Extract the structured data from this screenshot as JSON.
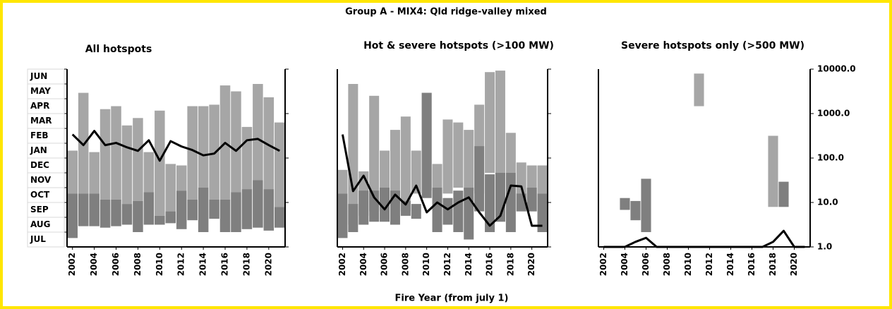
{
  "title": "Group A - MIX4: Qld ridge-valley mixed",
  "xlabel": "Fire Year (from july 1)",
  "chart_data": [
    {
      "type": "bar",
      "title": "All hotspots",
      "x": [
        2002,
        2003,
        2004,
        2005,
        2006,
        2007,
        2008,
        2009,
        2010,
        2011,
        2012,
        2013,
        2014,
        2015,
        2016,
        2017,
        2018,
        2019,
        2020,
        2021
      ],
      "xlim": [
        2001.5,
        2021.5
      ],
      "xticks": [
        2002,
        2004,
        2006,
        2008,
        2010,
        2012,
        2014,
        2016,
        2018,
        2020
      ],
      "ylim": [
        0,
        12
      ],
      "ycategories": [
        "JUL",
        "AUG",
        "SEP",
        "OCT",
        "NOV",
        "DEC",
        "JAN",
        "FEB",
        "MAR",
        "APR",
        "MAY",
        "JUN"
      ],
      "y2lim": [
        1,
        10000
      ],
      "y2log": true,
      "y2ticks": [
        1,
        10,
        100,
        1000,
        10000
      ],
      "series": [
        {
          "color": "#a6a6a6",
          "low": [
            3.6,
            3.6,
            3.6,
            3.2,
            3.2,
            2.9,
            3.1,
            3.7,
            2.1,
            2.4,
            3.8,
            3.2,
            4.0,
            3.2,
            3.2,
            3.7,
            3.9,
            4.5,
            3.9,
            2.7
          ],
          "high": [
            6.5,
            10.4,
            6.4,
            9.3,
            9.5,
            8.2,
            8.7,
            6.4,
            9.2,
            5.6,
            5.5,
            9.5,
            9.5,
            9.6,
            10.9,
            10.5,
            8.1,
            11.0,
            10.1,
            8.4
          ]
        },
        {
          "color": "#7f7f7f",
          "low": [
            0.6,
            1.4,
            1.4,
            1.3,
            1.4,
            1.5,
            1.0,
            1.5,
            1.5,
            1.6,
            1.2,
            1.8,
            1.0,
            1.9,
            1.0,
            1.0,
            1.2,
            1.3,
            1.1,
            1.3
          ],
          "high": [
            3.6,
            3.6,
            3.6,
            3.2,
            3.2,
            2.9,
            3.1,
            3.7,
            2.1,
            2.4,
            3.8,
            3.2,
            4.0,
            3.2,
            3.2,
            3.7,
            3.9,
            4.5,
            3.9,
            2.7
          ]
        },
        {
          "color": "#000000",
          "axis": "y2",
          "values": [
            339,
            195,
            407,
            195,
            219,
            174,
            145,
            251,
            87,
            240,
            182,
            151,
            115,
            126,
            219,
            145,
            251,
            269,
            195,
            145
          ]
        }
      ]
    },
    {
      "type": "bar",
      "title": "Hot & severe hotspots (>100 MW)",
      "x": [
        2002,
        2003,
        2004,
        2005,
        2006,
        2007,
        2008,
        2009,
        2010,
        2011,
        2012,
        2013,
        2014,
        2015,
        2016,
        2017,
        2018,
        2019,
        2020,
        2021
      ],
      "xlim": [
        2001.5,
        2021.5
      ],
      "xticks": [
        2002,
        2004,
        2006,
        2008,
        2010,
        2012,
        2014,
        2016,
        2018,
        2020
      ],
      "ylim": [
        0,
        12
      ],
      "y2lim": [
        1,
        10000
      ],
      "y2log": true,
      "y2ticks": [
        1,
        10,
        100,
        1000,
        10000
      ],
      "series": [
        {
          "color": "#a6a6a6",
          "low": [
            3.6,
            1.5,
            2.1,
            2.4,
            2.9,
            2.9,
            2.4,
            3.6,
            3.8,
            2.9,
            3.6,
            4.0,
            3.8,
            3.6,
            5.0,
            4.8,
            5.0,
            2.4,
            2.4,
            3.6
          ],
          "high": [
            5.2,
            11.0,
            5.1,
            10.2,
            6.5,
            7.9,
            8.8,
            6.5,
            10.4,
            5.6,
            8.6,
            8.4,
            7.9,
            9.6,
            11.8,
            11.9,
            7.7,
            5.7,
            5.5,
            5.5
          ]
        },
        {
          "color": "#7f7f7f",
          "low": [
            0.6,
            1.0,
            1.5,
            1.7,
            1.7,
            1.5,
            2.1,
            1.9,
            3.3,
            1.0,
            1.5,
            1.0,
            0.5,
            2.4,
            1.0,
            1.7,
            1.0,
            2.4,
            2.4,
            1.0
          ],
          "high": [
            3.6,
            2.9,
            3.8,
            3.8,
            4.0,
            3.8,
            3.1,
            2.9,
            10.4,
            4.0,
            3.3,
            3.8,
            4.0,
            6.8,
            4.9,
            5.0,
            5.0,
            3.6,
            4.0,
            3.6
          ]
        },
        {
          "color": "#000000",
          "axis": "y2",
          "values": [
            339,
            18,
            40,
            13,
            7,
            15,
            9,
            24,
            6,
            10,
            7,
            10,
            13,
            6,
            3,
            5,
            24,
            23,
            3,
            3
          ]
        }
      ]
    },
    {
      "type": "bar",
      "title": "Severe hotspots only (>500 MW)",
      "x": [
        2002,
        2003,
        2004,
        2005,
        2006,
        2007,
        2008,
        2009,
        2010,
        2011,
        2012,
        2013,
        2014,
        2015,
        2016,
        2017,
        2018,
        2019,
        2020,
        2021
      ],
      "xlim": [
        2001.5,
        2021.5
      ],
      "xticks": [
        2002,
        2004,
        2006,
        2008,
        2010,
        2012,
        2014,
        2016,
        2018,
        2020
      ],
      "ylim": [
        0,
        12
      ],
      "y2lim": [
        1,
        10000
      ],
      "y2log": true,
      "y2ticks": [
        {
          "value": 1,
          "label": "1.0"
        },
        {
          "value": 10,
          "label": "10.0"
        },
        {
          "value": 100,
          "label": "100.0"
        },
        {
          "value": 1000,
          "label": "1000.0"
        },
        {
          "value": 10000,
          "label": "10000.0"
        }
      ],
      "series": [
        {
          "color": "#a6a6a6",
          "low": [
            null,
            null,
            null,
            null,
            null,
            null,
            null,
            null,
            null,
            9.5,
            null,
            null,
            null,
            null,
            null,
            null,
            2.7,
            null,
            null,
            null
          ],
          "high": [
            null,
            null,
            null,
            null,
            null,
            null,
            null,
            null,
            null,
            11.7,
            null,
            null,
            null,
            null,
            null,
            null,
            7.5,
            null,
            null,
            null
          ]
        },
        {
          "color": "#7f7f7f",
          "low": [
            null,
            null,
            2.5,
            1.8,
            1.0,
            null,
            null,
            null,
            null,
            null,
            null,
            null,
            null,
            null,
            null,
            null,
            null,
            2.7,
            null,
            null
          ],
          "high": [
            null,
            null,
            3.3,
            3.1,
            4.6,
            null,
            null,
            null,
            null,
            null,
            null,
            null,
            null,
            null,
            null,
            null,
            null,
            4.4,
            null,
            null
          ]
        },
        {
          "color": "#000000",
          "axis": "y2",
          "values": [
            1,
            1,
            1,
            1.3,
            1.6,
            1,
            1,
            1,
            1,
            1,
            1,
            1,
            1,
            1,
            1,
            1,
            1.3,
            2.3,
            1,
            1
          ]
        }
      ]
    }
  ]
}
